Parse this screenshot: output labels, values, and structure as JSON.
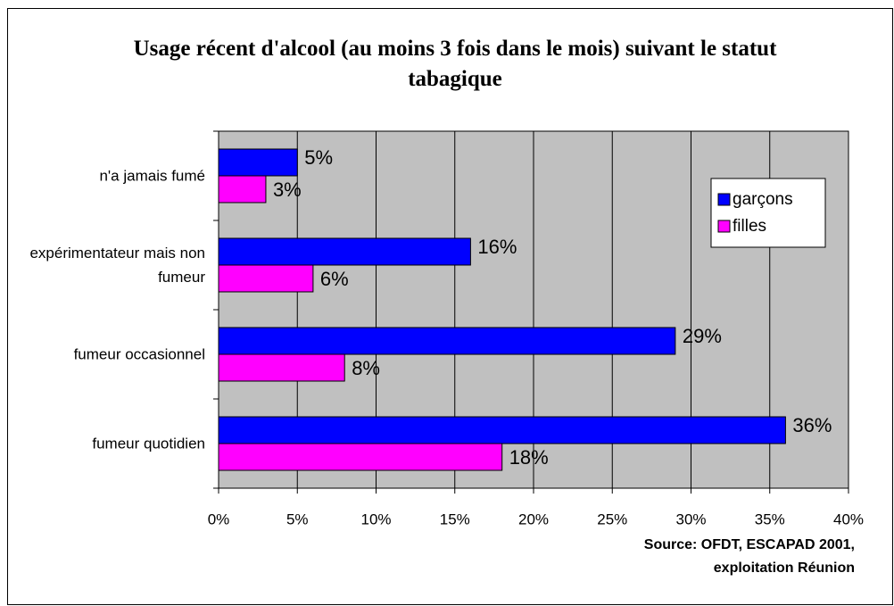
{
  "chart_data": {
    "type": "bar",
    "orientation": "horizontal",
    "title": "Usage récent d'alcool (au moins 3 fois dans le mois) suivant le statut tabagique",
    "source": "Source: OFDT, ESCAPAD 2001, exploitation Réunion",
    "categories": [
      "n'a jamais fumé",
      "expérimentateur mais non fumeur",
      "fumeur occasionnel",
      "fumeur quotidien"
    ],
    "series": [
      {
        "name": "garçons",
        "color": "#0000ff",
        "values": [
          5,
          16,
          29,
          36
        ],
        "value_labels": [
          "5%",
          "16%",
          "29%",
          "36%"
        ]
      },
      {
        "name": "filles",
        "color": "#ff00ff",
        "values": [
          3,
          6,
          8,
          18
        ],
        "value_labels": [
          "3%",
          "6%",
          "8%",
          "18%"
        ]
      }
    ],
    "xlim": [
      0,
      40
    ],
    "xticks": [
      {
        "value": 0,
        "label": "0%"
      },
      {
        "value": 5,
        "label": "5%"
      },
      {
        "value": 10,
        "label": "10%"
      },
      {
        "value": 15,
        "label": "15%"
      },
      {
        "value": 20,
        "label": "20%"
      },
      {
        "value": 25,
        "label": "25%"
      },
      {
        "value": 30,
        "label": "30%"
      },
      {
        "value": 35,
        "label": "35%"
      },
      {
        "value": 40,
        "label": "40%"
      }
    ],
    "grid": true,
    "legend": "right",
    "plot_background": "#c0c0c0"
  }
}
